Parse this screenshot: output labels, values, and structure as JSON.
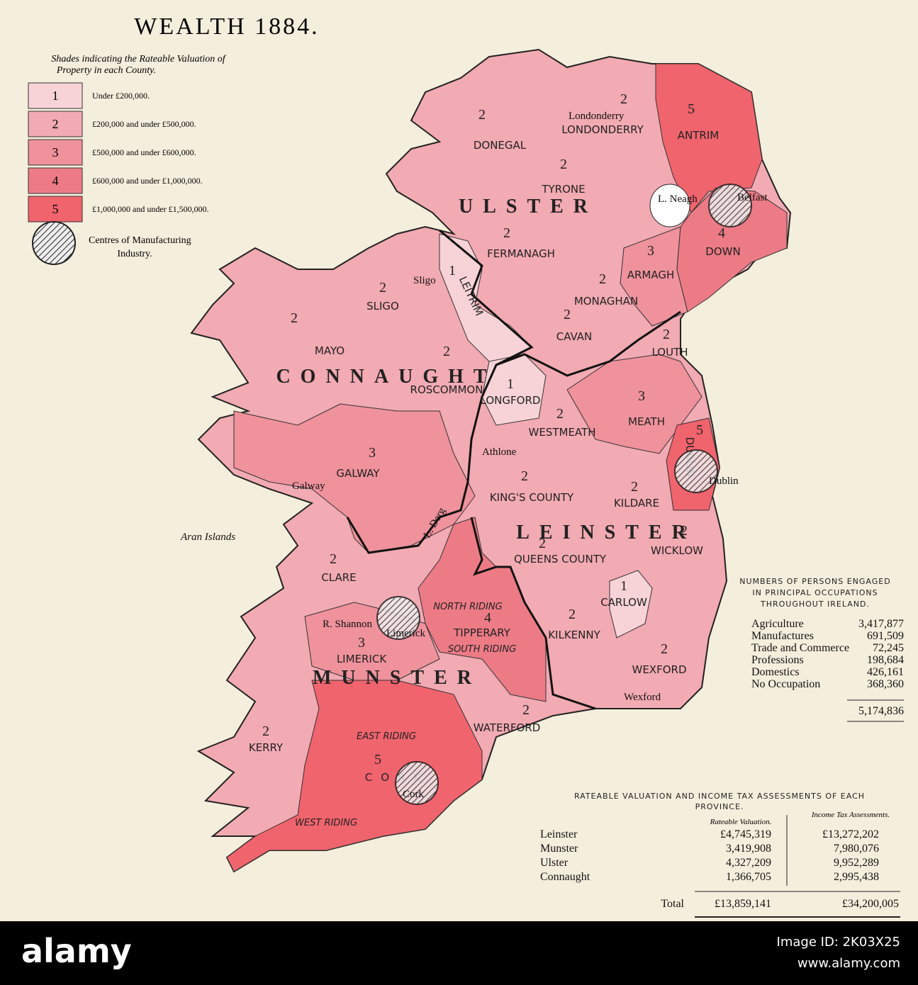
{
  "title": "WEALTH 1884.",
  "subtitle": [
    "Shades indicating the Rateable Valuation of",
    "Property in each County."
  ],
  "legend": {
    "items": [
      {
        "level": 1,
        "label": "Under £200,000.",
        "color": "#f7d3d7"
      },
      {
        "level": 2,
        "label": "£200,000 and under £500,000.",
        "color": "#f2aab3"
      },
      {
        "level": 3,
        "label": "£500,000 and under £600,000.",
        "color": "#ef929c"
      },
      {
        "level": 4,
        "label": "£600,000 and under £1,000,000.",
        "color": "#ed7b86"
      },
      {
        "level": 5,
        "label": "£1,000,000 and under £1,500,000.",
        "color": "#f0646e"
      }
    ],
    "manufacturing": [
      "Centres of Manufacturing",
      "Industry."
    ]
  },
  "counties": [
    {
      "name": "DONEGAL",
      "level": 2
    },
    {
      "name": "LONDONDERRY",
      "level": 2
    },
    {
      "name": "ANTRIM",
      "level": 5
    },
    {
      "name": "TYRONE",
      "level": 2
    },
    {
      "name": "FERMANAGH",
      "level": 2
    },
    {
      "name": "ARMAGH",
      "level": 3
    },
    {
      "name": "DOWN",
      "level": 4
    },
    {
      "name": "MONAGHAN",
      "level": 2
    },
    {
      "name": "SLIGO",
      "level": 2
    },
    {
      "name": "LEITRIM",
      "level": 1
    },
    {
      "name": "CAVAN",
      "level": 2
    },
    {
      "name": "LOUTH",
      "level": 2
    },
    {
      "name": "MAYO",
      "level": 2
    },
    {
      "name": "ROSCOMMON",
      "level": 2
    },
    {
      "name": "LONGFORD",
      "level": 1
    },
    {
      "name": "WESTMEATH",
      "level": 2
    },
    {
      "name": "MEATH",
      "level": 3
    },
    {
      "name": "DUBLIN",
      "level": 5
    },
    {
      "name": "GALWAY",
      "level": 3
    },
    {
      "name": "KING'S COUNTY",
      "level": 2
    },
    {
      "name": "KILDARE",
      "level": 2
    },
    {
      "name": "WICKLOW",
      "level": 2
    },
    {
      "name": "QUEENS COUNTY",
      "level": 2
    },
    {
      "name": "CLARE",
      "level": 2
    },
    {
      "name": "CARLOW",
      "level": 1
    },
    {
      "name": "TIPPERARY",
      "level": 4
    },
    {
      "name": "KILKENNY",
      "level": 2
    },
    {
      "name": "LIMERICK",
      "level": 3
    },
    {
      "name": "WEXFORD",
      "level": 2
    },
    {
      "name": "WATERFORD",
      "level": 2
    },
    {
      "name": "KERRY",
      "level": 2
    },
    {
      "name": "CORK",
      "level": 5
    }
  ],
  "provinces": [
    "ULSTER",
    "CONNAUGHT",
    "LEINSTER",
    "MUNSTER"
  ],
  "places": [
    "Londonderry",
    "L. Neagh",
    "Belfast",
    "Sligo",
    "Athlone",
    "Galway",
    "Dublin",
    "Aran Islands",
    "R. Shannon",
    "Limerick",
    "Cork",
    "Wexford",
    "L. Derg"
  ],
  "ridings": [
    "NORTH RIDING",
    "SOUTH RIDING",
    "EAST RIDING",
    "WEST RIDING"
  ],
  "occupations": {
    "title": [
      "NUMBERS OF PERSONS ENGAGED",
      "IN PRINCIPAL OCCUPATIONS",
      "THROUGHOUT IRELAND."
    ],
    "rows": [
      [
        "Agriculture",
        "3,417,877"
      ],
      [
        "Manufactures",
        "691,509"
      ],
      [
        "Trade and Commerce",
        "72,245"
      ],
      [
        "Professions",
        "198,684"
      ],
      [
        "Domestics",
        "426,161"
      ],
      [
        "No Occupation",
        "368,360"
      ]
    ],
    "total": "5,174,836"
  },
  "valuation": {
    "title": [
      "RATEABLE VALUATION AND INCOME TAX ASSESSMENTS OF EACH",
      "PROVINCE."
    ],
    "columns": [
      "Rateable Valuation.",
      "Income Tax Assessments."
    ],
    "rows": [
      [
        "Leinster",
        "£4,745,319",
        "£13,272,202"
      ],
      [
        "Munster",
        "3,419,908",
        "7,980,076"
      ],
      [
        "Ulster",
        "4,327,209",
        "9,952,289"
      ],
      [
        "Connaught",
        "1,366,705",
        "2,995,438"
      ]
    ],
    "total_label": "Total",
    "total": [
      "£13,859,141",
      "£34,200,005"
    ]
  },
  "watermark": {
    "brand": "alamy",
    "image_id": "Image ID: 2K03X25",
    "url": "www.alamy.com"
  }
}
